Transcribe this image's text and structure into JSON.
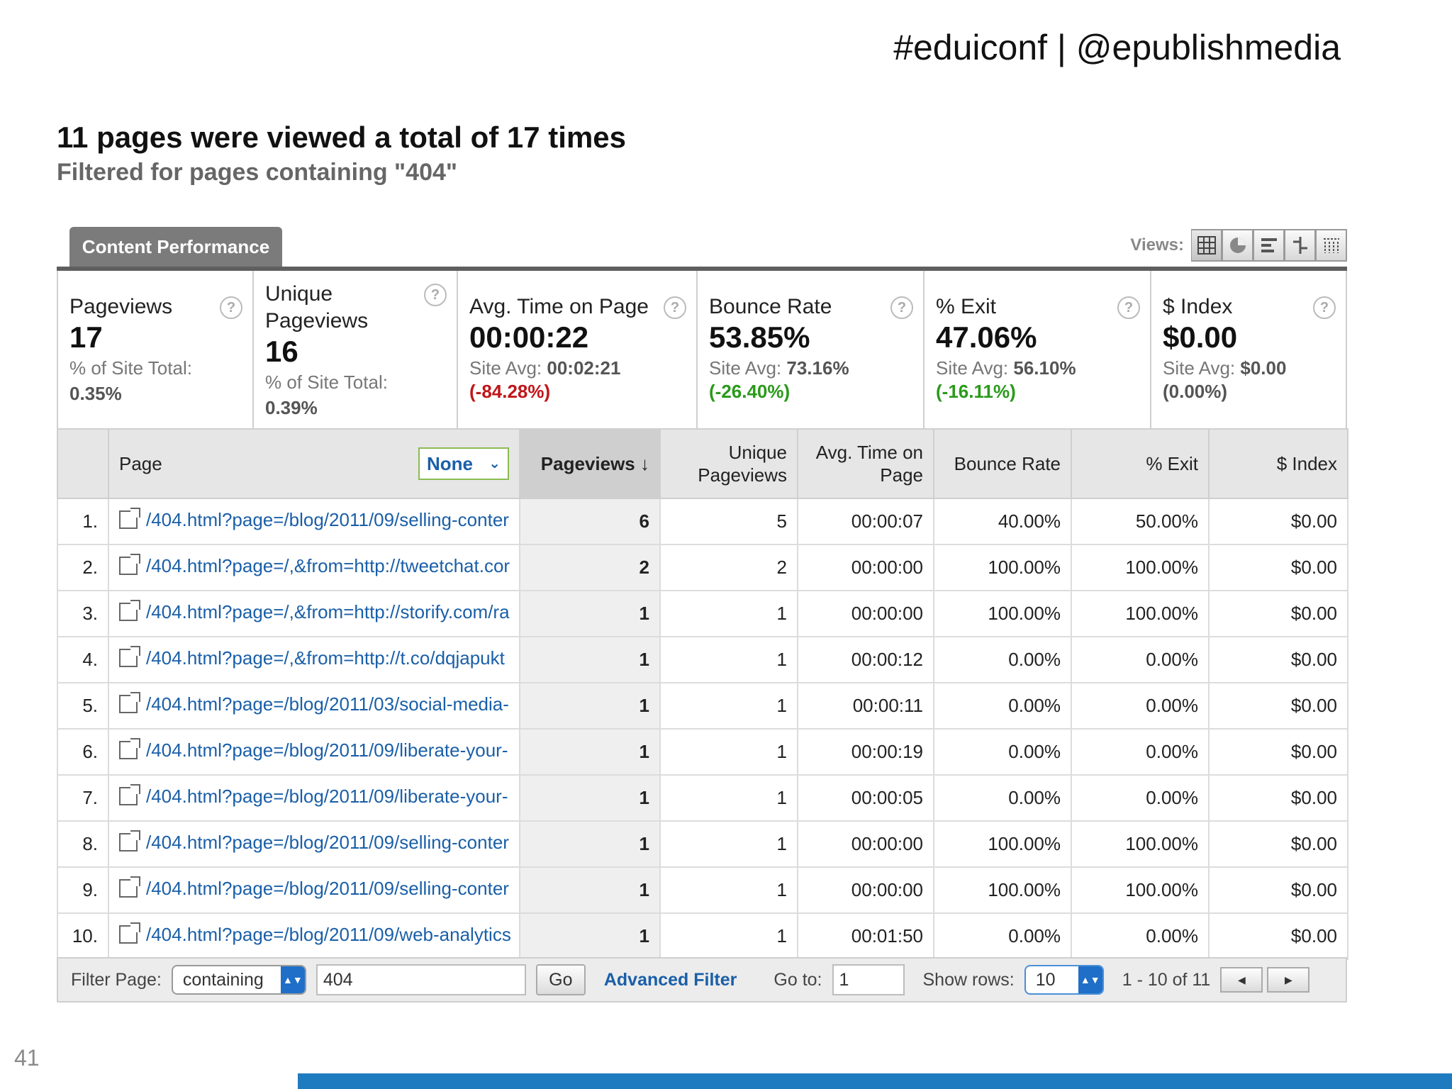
{
  "slide": {
    "tag": "#eduiconf | @epublishmedia",
    "number": "41"
  },
  "report": {
    "title": "11 pages were viewed a total of 17 times",
    "subtitle": "Filtered for pages containing \"404\"",
    "tab": "Content Performance",
    "views_label": "Views:",
    "view_icons": [
      "table-view-icon",
      "pie-view-icon",
      "bar-view-icon",
      "comparison-view-icon",
      "pivot-view-icon"
    ]
  },
  "scorecards": [
    {
      "label": "Pageviews",
      "value": "17",
      "sub_label": "% of Site Total:",
      "sub_value": "0.35%"
    },
    {
      "label": "Unique Pageviews",
      "value": "16",
      "sub_label": "% of Site Total:",
      "sub_value": "0.39%"
    },
    {
      "label": "Avg. Time on Page",
      "value": "00:00:22",
      "sub_label": "Site Avg:",
      "sub_value": "00:02:21",
      "change": "(-84.28%)",
      "change_color": "#c0161a"
    },
    {
      "label": "Bounce Rate",
      "value": "53.85%",
      "sub_label": "Site Avg:",
      "sub_value": "73.16%",
      "change": "(-26.40%)",
      "change_color": "#2a9a1a"
    },
    {
      "label": "% Exit",
      "value": "47.06%",
      "sub_label": "Site Avg:",
      "sub_value": "56.10%",
      "change": "(-16.11%)",
      "change_color": "#2a9a1a"
    },
    {
      "label": "$ Index",
      "value": "$0.00",
      "sub_label": "Site Avg:",
      "sub_value": "$0.00",
      "change": "(0.00%)",
      "change_color": "#555555"
    }
  ],
  "help_glyph": "?",
  "table": {
    "headers": {
      "page": "Page",
      "secondary": "None",
      "pageviews": "Pageviews ↓",
      "unique_pageviews": "Unique Pageviews",
      "avg_time": "Avg. Time on Page",
      "bounce_rate": "Bounce Rate",
      "exit": "% Exit",
      "index": "$ Index"
    },
    "rows": [
      {
        "n": "1.",
        "page": "/404.html?page=/blog/2011/09/selling-conter",
        "pv": "6",
        "upv": "5",
        "time": "00:00:07",
        "bounce": "40.00%",
        "exit": "50.00%",
        "index": "$0.00"
      },
      {
        "n": "2.",
        "page": "/404.html?page=/,&from=http://tweetchat.cor",
        "pv": "2",
        "upv": "2",
        "time": "00:00:00",
        "bounce": "100.00%",
        "exit": "100.00%",
        "index": "$0.00"
      },
      {
        "n": "3.",
        "page": "/404.html?page=/,&from=http://storify.com/ra",
        "pv": "1",
        "upv": "1",
        "time": "00:00:00",
        "bounce": "100.00%",
        "exit": "100.00%",
        "index": "$0.00"
      },
      {
        "n": "4.",
        "page": "/404.html?page=/,&from=http://t.co/dqjapukt",
        "pv": "1",
        "upv": "1",
        "time": "00:00:12",
        "bounce": "0.00%",
        "exit": "0.00%",
        "index": "$0.00"
      },
      {
        "n": "5.",
        "page": "/404.html?page=/blog/2011/03/social-media-",
        "pv": "1",
        "upv": "1",
        "time": "00:00:11",
        "bounce": "0.00%",
        "exit": "0.00%",
        "index": "$0.00"
      },
      {
        "n": "6.",
        "page": "/404.html?page=/blog/2011/09/liberate-your-",
        "pv": "1",
        "upv": "1",
        "time": "00:00:19",
        "bounce": "0.00%",
        "exit": "0.00%",
        "index": "$0.00"
      },
      {
        "n": "7.",
        "page": "/404.html?page=/blog/2011/09/liberate-your-",
        "pv": "1",
        "upv": "1",
        "time": "00:00:05",
        "bounce": "0.00%",
        "exit": "0.00%",
        "index": "$0.00"
      },
      {
        "n": "8.",
        "page": "/404.html?page=/blog/2011/09/selling-conter",
        "pv": "1",
        "upv": "1",
        "time": "00:00:00",
        "bounce": "100.00%",
        "exit": "100.00%",
        "index": "$0.00"
      },
      {
        "n": "9.",
        "page": "/404.html?page=/blog/2011/09/selling-conter",
        "pv": "1",
        "upv": "1",
        "time": "00:00:00",
        "bounce": "100.00%",
        "exit": "100.00%",
        "index": "$0.00"
      },
      {
        "n": "10.",
        "page": "/404.html?page=/blog/2011/09/web-analytics",
        "pv": "1",
        "upv": "1",
        "time": "00:01:50",
        "bounce": "0.00%",
        "exit": "0.00%",
        "index": "$0.00"
      }
    ]
  },
  "footer": {
    "filter_label": "Filter Page:",
    "filter_mode": "containing",
    "filter_value": "404",
    "go_label": "Go",
    "advanced_filter": "Advanced Filter",
    "goto_label": "Go to:",
    "goto_value": "1",
    "show_rows_label": "Show rows:",
    "show_rows_value": "10",
    "range": "1 - 10 of 11",
    "prev_glyph": "◀",
    "next_glyph": "▶",
    "stepper_glyph": "▲▼"
  }
}
